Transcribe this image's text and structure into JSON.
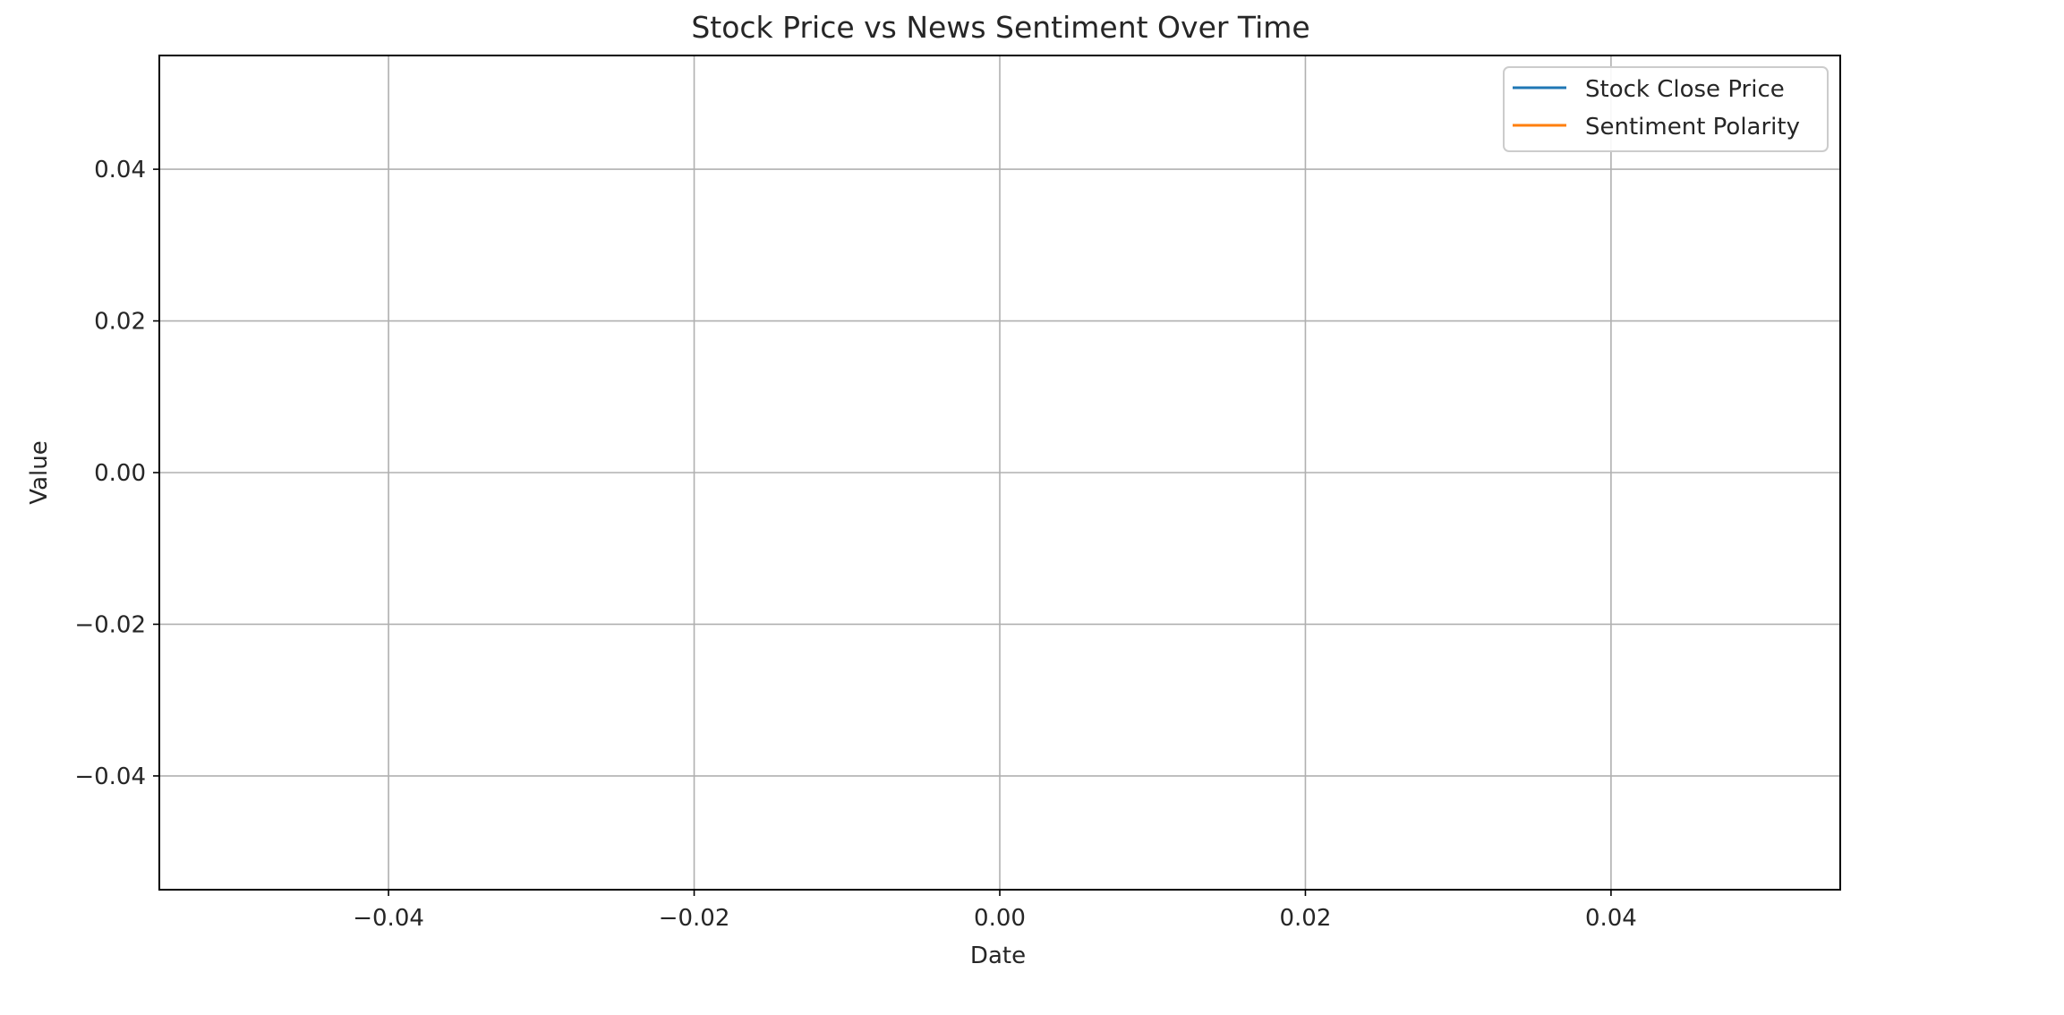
{
  "chart_data": {
    "type": "line",
    "title": "Stock Price vs News Sentiment Over Time",
    "xlabel": "Date",
    "ylabel": "Value",
    "xlim": [
      -0.055,
      0.055
    ],
    "ylim": [
      -0.055,
      0.055
    ],
    "x_ticks": [
      -0.04,
      -0.02,
      0.0,
      0.02,
      0.04
    ],
    "x_tick_labels": [
      "−0.04",
      "−0.02",
      "0.00",
      "0.02",
      "0.04"
    ],
    "y_ticks": [
      -0.04,
      -0.02,
      0.0,
      0.02,
      0.04
    ],
    "y_tick_labels": [
      "−0.04",
      "−0.02",
      "0.00",
      "0.02",
      "0.04"
    ],
    "grid": true,
    "legend_position": "top-right",
    "series": [
      {
        "name": "Stock Close Price",
        "color": "#1f77b4",
        "x": [],
        "y": []
      },
      {
        "name": "Sentiment Polarity",
        "color": "#ff7f0e",
        "x": [],
        "y": []
      }
    ]
  }
}
